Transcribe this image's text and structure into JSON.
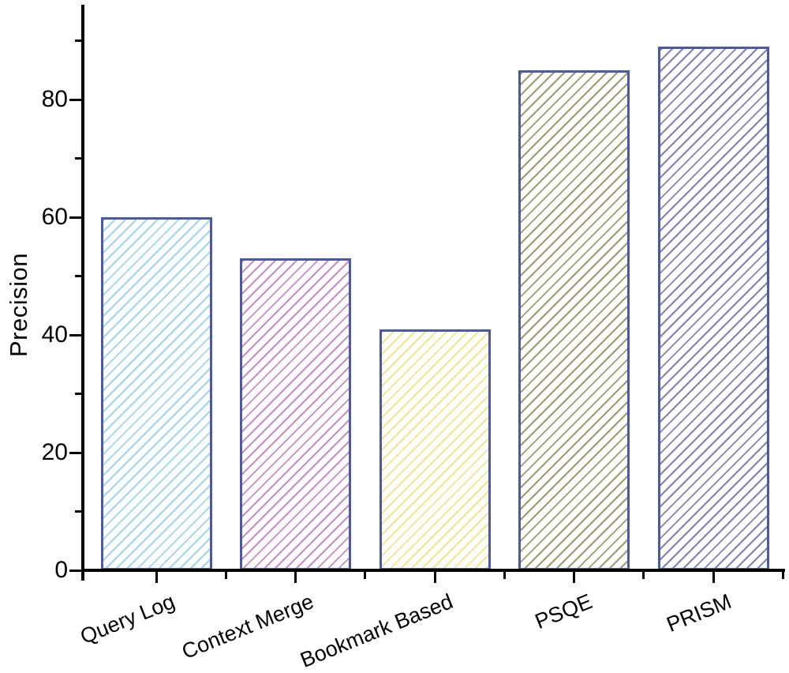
{
  "chart_data": {
    "type": "bar",
    "title": "",
    "xlabel": "",
    "ylabel": "Precision",
    "categories": [
      "Query Log",
      "Context Merge",
      "Bookmark Based",
      "PSQE",
      "PRISM"
    ],
    "values": [
      60,
      53,
      41,
      85,
      89
    ],
    "ylim": [
      0,
      96
    ],
    "yticks_major": [
      0,
      20,
      40,
      60,
      80
    ],
    "yticks_minor": [
      10,
      30,
      50,
      70,
      90
    ],
    "grid": false,
    "legend": false,
    "x_label_rotation_deg": -22,
    "bar_style": {
      "border_color": "#4b59a9",
      "hatch_pattern": "diagonal-45",
      "hatch_colors": [
        "#9fd5ee",
        "#c98bc9",
        "#f0e78c",
        "#a09b6e",
        "#8082b8"
      ]
    },
    "axis_color": "#000000",
    "text_color": "#000000",
    "background_color": "#ffffff"
  }
}
